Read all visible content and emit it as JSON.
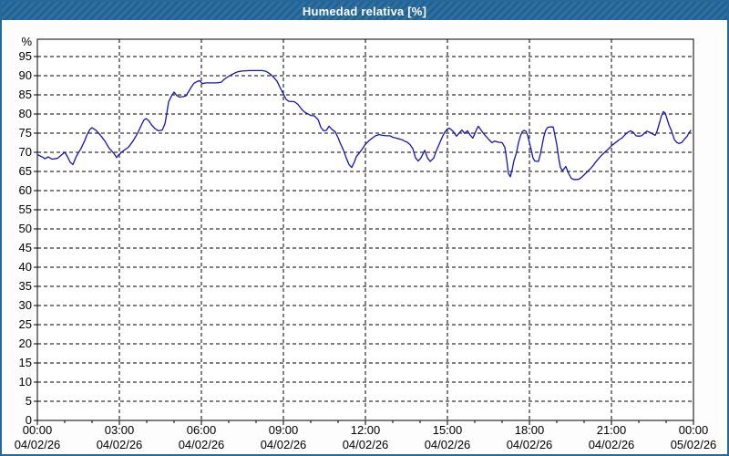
{
  "window": {
    "title": "Humedad relativa [%]",
    "titlebar_color": "#24689c",
    "border_color": "#24689c",
    "background": "#fdfdfd"
  },
  "chart_data": {
    "type": "line",
    "title": "Humedad relativa [%]",
    "ylabel": "%",
    "xlabel": "",
    "grid": "dashed",
    "legend_position": "none",
    "line_color": "#1414b8",
    "axis_color": "#000000",
    "plot_background": "#ffffff",
    "ylim": [
      0,
      99.5
    ],
    "xlim_hours": [
      0,
      24
    ],
    "y_ticks": [
      0,
      5,
      10,
      15,
      20,
      25,
      30,
      35,
      40,
      45,
      50,
      55,
      60,
      65,
      70,
      75,
      80,
      85,
      90,
      95
    ],
    "x_minor_tick_every_hours": 1,
    "x_ticks": [
      {
        "hour": 0,
        "time": "00:00",
        "date": "04/02/26"
      },
      {
        "hour": 3,
        "time": "03:00",
        "date": "04/02/26"
      },
      {
        "hour": 6,
        "time": "06:00",
        "date": "04/02/26"
      },
      {
        "hour": 9,
        "time": "09:00",
        "date": "04/02/26"
      },
      {
        "hour": 12,
        "time": "12:00",
        "date": "04/02/26"
      },
      {
        "hour": 15,
        "time": "15:00",
        "date": "04/02/26"
      },
      {
        "hour": 18,
        "time": "18:00",
        "date": "04/02/26"
      },
      {
        "hour": 21,
        "time": "21:00",
        "date": "04/02/26"
      },
      {
        "hour": 24,
        "time": "00:00",
        "date": "05/02/26"
      }
    ],
    "series": [
      {
        "name": "Humedad relativa",
        "points": [
          [
            0.0,
            69.4
          ],
          [
            0.2,
            68.7
          ],
          [
            0.27,
            68.3
          ],
          [
            0.4,
            68.8
          ],
          [
            0.53,
            68.2
          ],
          [
            0.73,
            68.4
          ],
          [
            0.87,
            69.2
          ],
          [
            1.0,
            70.0
          ],
          [
            1.1,
            68.9
          ],
          [
            1.2,
            67.4
          ],
          [
            1.3,
            66.8
          ],
          [
            1.43,
            69.0
          ],
          [
            1.6,
            71.0
          ],
          [
            1.73,
            73.0
          ],
          [
            1.83,
            74.8
          ],
          [
            1.93,
            76.0
          ],
          [
            2.0,
            76.4
          ],
          [
            2.13,
            75.8
          ],
          [
            2.3,
            74.5
          ],
          [
            2.47,
            72.9
          ],
          [
            2.63,
            71.0
          ],
          [
            2.8,
            69.7
          ],
          [
            2.9,
            68.6
          ],
          [
            2.97,
            69.3
          ],
          [
            3.17,
            70.5
          ],
          [
            3.33,
            71.3
          ],
          [
            3.5,
            72.9
          ],
          [
            3.67,
            75.0
          ],
          [
            3.8,
            77.0
          ],
          [
            3.9,
            78.4
          ],
          [
            3.97,
            78.8
          ],
          [
            4.07,
            78.3
          ],
          [
            4.17,
            77.2
          ],
          [
            4.3,
            76.2
          ],
          [
            4.43,
            75.6
          ],
          [
            4.57,
            75.8
          ],
          [
            4.67,
            77.5
          ],
          [
            4.73,
            80.0
          ],
          [
            4.8,
            83.1
          ],
          [
            4.9,
            84.6
          ],
          [
            5.0,
            85.7
          ],
          [
            5.1,
            84.8
          ],
          [
            5.2,
            84.4
          ],
          [
            5.33,
            84.5
          ],
          [
            5.43,
            84.7
          ],
          [
            5.53,
            85.8
          ],
          [
            5.63,
            87.0
          ],
          [
            5.73,
            88.0
          ],
          [
            5.83,
            88.4
          ],
          [
            5.93,
            88.7
          ],
          [
            6.03,
            87.9
          ],
          [
            6.17,
            88.1
          ],
          [
            6.37,
            88.1
          ],
          [
            6.57,
            88.1
          ],
          [
            6.73,
            88.3
          ],
          [
            6.83,
            89.0
          ],
          [
            6.93,
            89.5
          ],
          [
            7.07,
            90.1
          ],
          [
            7.2,
            90.6
          ],
          [
            7.33,
            91.0
          ],
          [
            7.5,
            91.2
          ],
          [
            7.77,
            91.3
          ],
          [
            8.0,
            91.3
          ],
          [
            8.23,
            91.3
          ],
          [
            8.37,
            91.1
          ],
          [
            8.5,
            90.5
          ],
          [
            8.63,
            89.7
          ],
          [
            8.77,
            88.5
          ],
          [
            8.87,
            87.0
          ],
          [
            9.0,
            85.2
          ],
          [
            9.1,
            83.8
          ],
          [
            9.2,
            83.3
          ],
          [
            9.4,
            83.2
          ],
          [
            9.53,
            82.5
          ],
          [
            9.67,
            81.2
          ],
          [
            9.77,
            80.5
          ],
          [
            9.9,
            80.0
          ],
          [
            10.0,
            79.6
          ],
          [
            10.13,
            79.5
          ],
          [
            10.27,
            78.5
          ],
          [
            10.37,
            76.5
          ],
          [
            10.47,
            75.6
          ],
          [
            10.57,
            75.7
          ],
          [
            10.67,
            76.8
          ],
          [
            10.77,
            76.0
          ],
          [
            10.9,
            75.3
          ],
          [
            11.0,
            73.8
          ],
          [
            11.07,
            72.5
          ],
          [
            11.2,
            70.5
          ],
          [
            11.3,
            68.5
          ],
          [
            11.4,
            66.8
          ],
          [
            11.5,
            66.0
          ],
          [
            11.6,
            67.5
          ],
          [
            11.67,
            68.9
          ],
          [
            11.8,
            70.0
          ],
          [
            11.9,
            71.0
          ],
          [
            12.0,
            72.1
          ],
          [
            12.13,
            73.0
          ],
          [
            12.27,
            73.8
          ],
          [
            12.37,
            74.3
          ],
          [
            12.5,
            74.6
          ],
          [
            12.63,
            74.4
          ],
          [
            12.77,
            74.3
          ],
          [
            12.9,
            74.3
          ],
          [
            13.0,
            73.9
          ],
          [
            13.17,
            73.6
          ],
          [
            13.33,
            73.3
          ],
          [
            13.43,
            72.9
          ],
          [
            13.53,
            72.6
          ],
          [
            13.63,
            72.0
          ],
          [
            13.73,
            71.0
          ],
          [
            13.83,
            68.6
          ],
          [
            13.93,
            67.7
          ],
          [
            14.03,
            68.5
          ],
          [
            14.17,
            70.5
          ],
          [
            14.27,
            68.5
          ],
          [
            14.37,
            67.6
          ],
          [
            14.5,
            68.5
          ],
          [
            14.6,
            70.5
          ],
          [
            14.7,
            72.1
          ],
          [
            14.8,
            73.8
          ],
          [
            14.9,
            75.2
          ],
          [
            15.0,
            76.1
          ],
          [
            15.07,
            76.3
          ],
          [
            15.2,
            75.5
          ],
          [
            15.33,
            74.2
          ],
          [
            15.43,
            75.0
          ],
          [
            15.53,
            75.8
          ],
          [
            15.63,
            74.9
          ],
          [
            15.73,
            75.6
          ],
          [
            15.83,
            74.5
          ],
          [
            15.93,
            73.7
          ],
          [
            16.0,
            74.8
          ],
          [
            16.07,
            76.0
          ],
          [
            16.13,
            76.8
          ],
          [
            16.23,
            75.8
          ],
          [
            16.33,
            74.8
          ],
          [
            16.43,
            74.0
          ],
          [
            16.53,
            73.2
          ],
          [
            16.63,
            72.5
          ],
          [
            16.73,
            72.9
          ],
          [
            16.87,
            72.6
          ],
          [
            17.0,
            72.5
          ],
          [
            17.1,
            71.3
          ],
          [
            17.17,
            68.0
          ],
          [
            17.23,
            64.5
          ],
          [
            17.3,
            63.6
          ],
          [
            17.37,
            65.5
          ],
          [
            17.43,
            67.7
          ],
          [
            17.53,
            70.0
          ],
          [
            17.6,
            72.5
          ],
          [
            17.67,
            74.2
          ],
          [
            17.73,
            75.3
          ],
          [
            17.8,
            75.7
          ],
          [
            17.87,
            75.5
          ],
          [
            17.93,
            74.5
          ],
          [
            18.0,
            72.5
          ],
          [
            18.07,
            70.5
          ],
          [
            18.13,
            68.5
          ],
          [
            18.2,
            67.7
          ],
          [
            18.33,
            67.6
          ],
          [
            18.4,
            69.5
          ],
          [
            18.47,
            72.0
          ],
          [
            18.53,
            74.2
          ],
          [
            18.6,
            75.8
          ],
          [
            18.67,
            76.5
          ],
          [
            18.77,
            76.6
          ],
          [
            18.87,
            76.6
          ],
          [
            18.93,
            74.5
          ],
          [
            19.0,
            72.0
          ],
          [
            19.07,
            68.5
          ],
          [
            19.13,
            66.1
          ],
          [
            19.2,
            65.2
          ],
          [
            19.27,
            65.7
          ],
          [
            19.33,
            66.3
          ],
          [
            19.43,
            64.5
          ],
          [
            19.53,
            63.2
          ],
          [
            19.63,
            62.9
          ],
          [
            19.73,
            62.9
          ],
          [
            19.83,
            63.0
          ],
          [
            19.93,
            63.6
          ],
          [
            20.03,
            64.3
          ],
          [
            20.13,
            65.0
          ],
          [
            20.23,
            65.7
          ],
          [
            20.33,
            66.5
          ],
          [
            20.43,
            67.5
          ],
          [
            20.5,
            68.1
          ],
          [
            20.6,
            68.9
          ],
          [
            20.7,
            69.6
          ],
          [
            20.8,
            70.3
          ],
          [
            20.9,
            70.9
          ],
          [
            21.0,
            71.7
          ],
          [
            21.13,
            72.4
          ],
          [
            21.27,
            73.2
          ],
          [
            21.4,
            73.8
          ],
          [
            21.5,
            74.6
          ],
          [
            21.6,
            75.2
          ],
          [
            21.7,
            75.6
          ],
          [
            21.8,
            75.2
          ],
          [
            21.9,
            74.3
          ],
          [
            22.0,
            74.2
          ],
          [
            22.1,
            74.3
          ],
          [
            22.2,
            74.9
          ],
          [
            22.3,
            75.5
          ],
          [
            22.4,
            75.2
          ],
          [
            22.5,
            74.8
          ],
          [
            22.6,
            74.4
          ],
          [
            22.67,
            75.5
          ],
          [
            22.77,
            78.0
          ],
          [
            22.83,
            79.5
          ],
          [
            22.9,
            80.6
          ],
          [
            22.97,
            80.2
          ],
          [
            23.03,
            78.8
          ],
          [
            23.1,
            77.2
          ],
          [
            23.2,
            75.5
          ],
          [
            23.3,
            73.3
          ],
          [
            23.4,
            72.5
          ],
          [
            23.47,
            72.3
          ],
          [
            23.57,
            72.5
          ],
          [
            23.67,
            73.4
          ],
          [
            23.77,
            74.2
          ],
          [
            23.83,
            75.0
          ],
          [
            23.9,
            75.7
          ]
        ]
      }
    ]
  }
}
